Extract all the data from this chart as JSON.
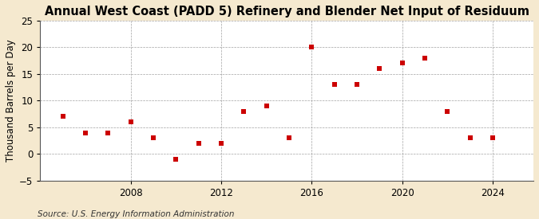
{
  "title": "Annual West Coast (PADD 5) Refinery and Blender Net Input of Residuum",
  "ylabel": "Thousand Barrels per Day",
  "source": "Source: U.S. Energy Information Administration",
  "years": [
    2005,
    2006,
    2007,
    2008,
    2009,
    2010,
    2011,
    2012,
    2013,
    2014,
    2015,
    2016,
    2017,
    2018,
    2019,
    2020,
    2021,
    2022,
    2023,
    2024
  ],
  "values": [
    7,
    4,
    4,
    6,
    3,
    -1,
    2,
    2,
    8,
    9,
    3,
    20,
    13,
    13,
    16,
    17,
    18,
    8,
    3,
    3
  ],
  "marker_color": "#cc0000",
  "background_color": "#f5e9cf",
  "plot_bg_color": "#ffffff",
  "grid_color": "#999999",
  "ylim": [
    -5,
    25
  ],
  "yticks": [
    -5,
    0,
    5,
    10,
    15,
    20,
    25
  ],
  "xlim": [
    2004.0,
    2025.8
  ],
  "xticks": [
    2008,
    2012,
    2016,
    2020,
    2024
  ],
  "title_fontsize": 10.5,
  "label_fontsize": 8.5,
  "source_fontsize": 7.5
}
